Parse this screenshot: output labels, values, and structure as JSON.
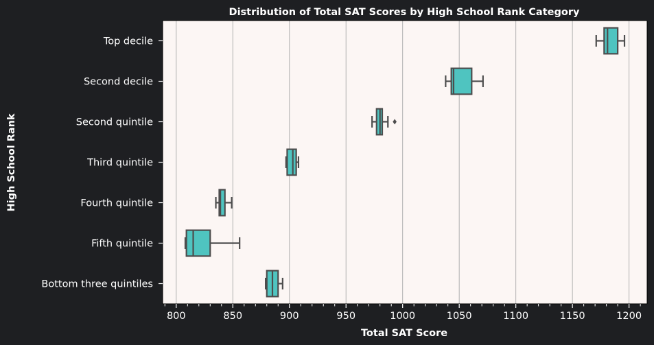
{
  "chart_data": {
    "type": "boxplot",
    "orientation": "horizontal",
    "title": "Distribution of Total SAT Scores by High School Rank Category",
    "xlabel": "Total SAT Score",
    "ylabel": "High School Rank",
    "xlim": [
      788,
      1216
    ],
    "xticks": [
      800,
      850,
      900,
      950,
      1000,
      1050,
      1100,
      1150,
      1200
    ],
    "grid": "vertical",
    "colors": {
      "figure_background": "#1e1f22",
      "plot_background": "#fcf6f4",
      "box_fill": "#4fc4c0",
      "box_edge": "#4d4d4d",
      "grid": "#b0b0b0",
      "text": "#ffffff"
    },
    "categories": [
      "Top decile",
      "Second decile",
      "Second quintile",
      "Third quintile",
      "Fourth quintile",
      "Fifth quintile",
      "Bottom three quintiles "
    ],
    "boxes": [
      {
        "category": "Top decile",
        "whisker_low": 1171,
        "q1": 1178,
        "median": 1181,
        "q3": 1190,
        "whisker_high": 1196,
        "outliers": []
      },
      {
        "category": "Second decile",
        "whisker_low": 1038,
        "q1": 1043,
        "median": 1045,
        "q3": 1061,
        "whisker_high": 1071,
        "outliers": []
      },
      {
        "category": "Second quintile",
        "whisker_low": 973,
        "q1": 977,
        "median": 980,
        "q3": 982,
        "whisker_high": 987,
        "outliers": [
          993
        ]
      },
      {
        "category": "Third quintile",
        "whisker_low": 897,
        "q1": 898,
        "median": 903,
        "q3": 906,
        "whisker_high": 908,
        "outliers": []
      },
      {
        "category": "Fourth quintile",
        "whisker_low": 835,
        "q1": 838,
        "median": 839,
        "q3": 843,
        "whisker_high": 849,
        "outliers": []
      },
      {
        "category": "Fifth quintile",
        "whisker_low": 808,
        "q1": 809,
        "median": 815,
        "q3": 830,
        "whisker_high": 856,
        "outliers": []
      },
      {
        "category": "Bottom three quintiles ",
        "whisker_low": 879,
        "q1": 880,
        "median": 885,
        "q3": 890,
        "whisker_high": 894,
        "outliers": []
      }
    ]
  }
}
